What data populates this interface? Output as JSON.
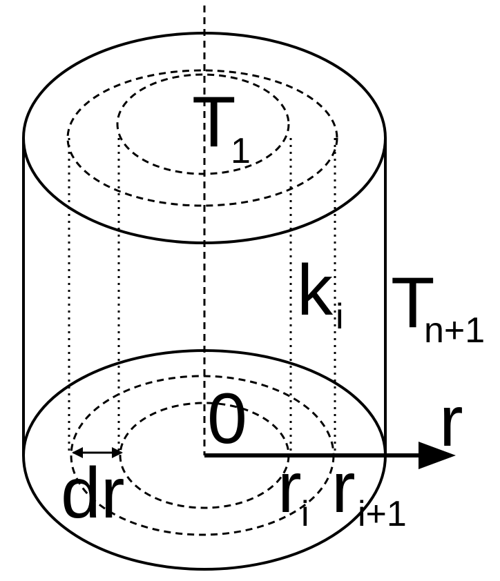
{
  "diagram": {
    "labels": {
      "top_temperature": {
        "base": "T",
        "subscript": "1"
      },
      "outer_temperature": {
        "base": "T",
        "subscript": "n+1"
      },
      "conductivity": {
        "base": "k",
        "subscript": "i"
      },
      "origin": "0",
      "axis": "r",
      "radius_i": {
        "base": "r",
        "subscript": "i"
      },
      "radius_i_plus_1": {
        "base": "r",
        "subscript": "i+1"
      },
      "thickness": "dr"
    },
    "colors": {
      "ink": "#000000",
      "background": "#ffffff"
    }
  }
}
